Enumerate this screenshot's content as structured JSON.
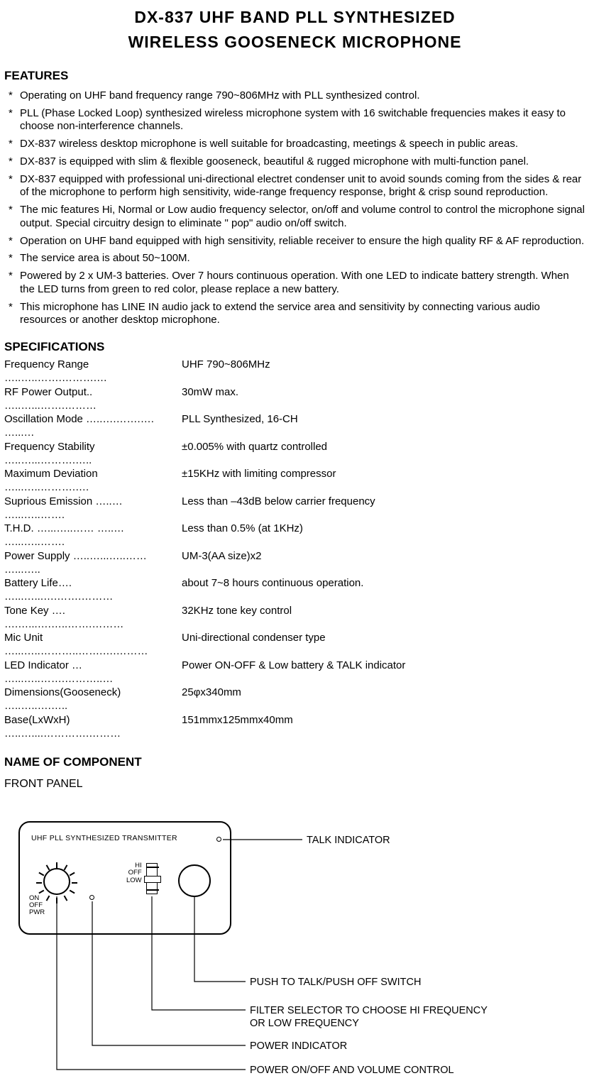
{
  "title_line1": "DX-837 UHF BAND PLL SYNTHESIZED",
  "title_line2": "WIRELESS GOOSENECK MICROPHONE",
  "features_header": "FEATURES",
  "star": "*",
  "features": [
    "Operating on UHF band frequency range 790~806MHz with PLL synthesized control.",
    "PLL (Phase Locked Loop) synthesized wireless microphone system with 16 switchable frequencies makes it easy to choose non-interference channels.",
    "DX-837 wireless desktop microphone is well suitable for broadcasting, meetings & speech in public areas.",
    "DX-837 is equipped with slim & flexible gooseneck, beautiful & rugged microphone with multi-function panel.",
    "DX-837 equipped with professional uni-directional electret condenser unit to avoid sounds coming from the sides & rear of the microphone to perform high sensitivity, wide-range frequency response, bright & crisp sound reproduction.",
    "The mic features Hi, Normal or Low audio frequency selector, on/off and volume control to control the microphone signal output.  Special circuitry design to eliminate \" pop\" audio on/off switch.",
    "Operation on UHF band equipped with high sensitivity, reliable receiver to ensure the high quality RF & AF reproduction.",
    "The service area is about 50~100M.",
    "Powered by 2 x UM-3 batteries.  Over 7 hours continuous operation.  With one LED to indicate battery strength.  When the LED turns from green to red color, please replace a new battery.",
    "This microphone has LINE IN audio jack to extend the service area and sensitivity by connecting various audio resources or another desktop microphone."
  ],
  "specs_header": "SPECIFICATIONS",
  "specs": [
    {
      "label": "Frequency Range …..…..…….……….…",
      "value": "UHF 790~806MHz"
    },
    {
      "label": "RF Power Output.. …..…...…….………",
      "value": "30mW max."
    },
    {
      "label": "Oscillation Mode …..….…….…. …...…",
      "value": "PLL Synthesized, 16-CH"
    },
    {
      "label": "Frequency Stability …..…...……….…..",
      "value": "±0.005% with quartz controlled"
    },
    {
      "label": "Maximum Deviation …...…..……….….",
      "value": "±15KHz with limiting compressor"
    },
    {
      "label": "Suprious Emission …..… …...…..…….",
      "value": "Less than –43dB below carrier frequency"
    },
    {
      "label": "T.H.D.  …...…..…… …..… …...…..…….",
      "value": "Less than 0.5% (at 1KHz)"
    },
    {
      "label": "Power Supply …..…...…..…… …...…..",
      "value": "UM-3(AA size)x2"
    },
    {
      "label": "Battery Life…. …...…...….…….………",
      "value": "about 7~8 hours continuous operation."
    },
    {
      "label": "Tone Key …. ….…...….…..…….………",
      "value": "32KHz tone key control"
    },
    {
      "label": "Mic Unit …...…..………..…….….………",
      "value": "Uni-directional condenser type"
    },
    {
      "label": "LED Indicator … …...…..…….………..…",
      "value": "Power ON-OFF & Low battery & TALK indicator"
    },
    {
      "label": "Dimensions(Gooseneck) …..…..….…..",
      "value": "25φx340mm"
    },
    {
      "label": "Base(LxWxH) …..…....………….………",
      "value": "151mmx125mmx40mm"
    }
  ],
  "name_header": "NAME OF COMPONENT",
  "front_header": "FRONT PANEL",
  "panel": {
    "label": "UHF PLL SYNTHESIZED TRANSMITTER",
    "knob_on": "ON",
    "knob_off": "OFF",
    "knob_pwr": "PWR",
    "slider_hi": "HI",
    "slider_off": "OFF",
    "slider_low": "LOW"
  },
  "callouts": {
    "talk": "TALK INDICATOR",
    "push": "PUSH TO TALK/PUSH OFF SWITCH",
    "filter1": "FILTER SELECTOR TO CHOOSE HI FREQUENCY",
    "filter2": "OR LOW FREQUENCY",
    "pwr_ind": "POWER INDICATOR",
    "pwr_vol": "POWER ON/OFF AND VOLUME CONTROL"
  }
}
